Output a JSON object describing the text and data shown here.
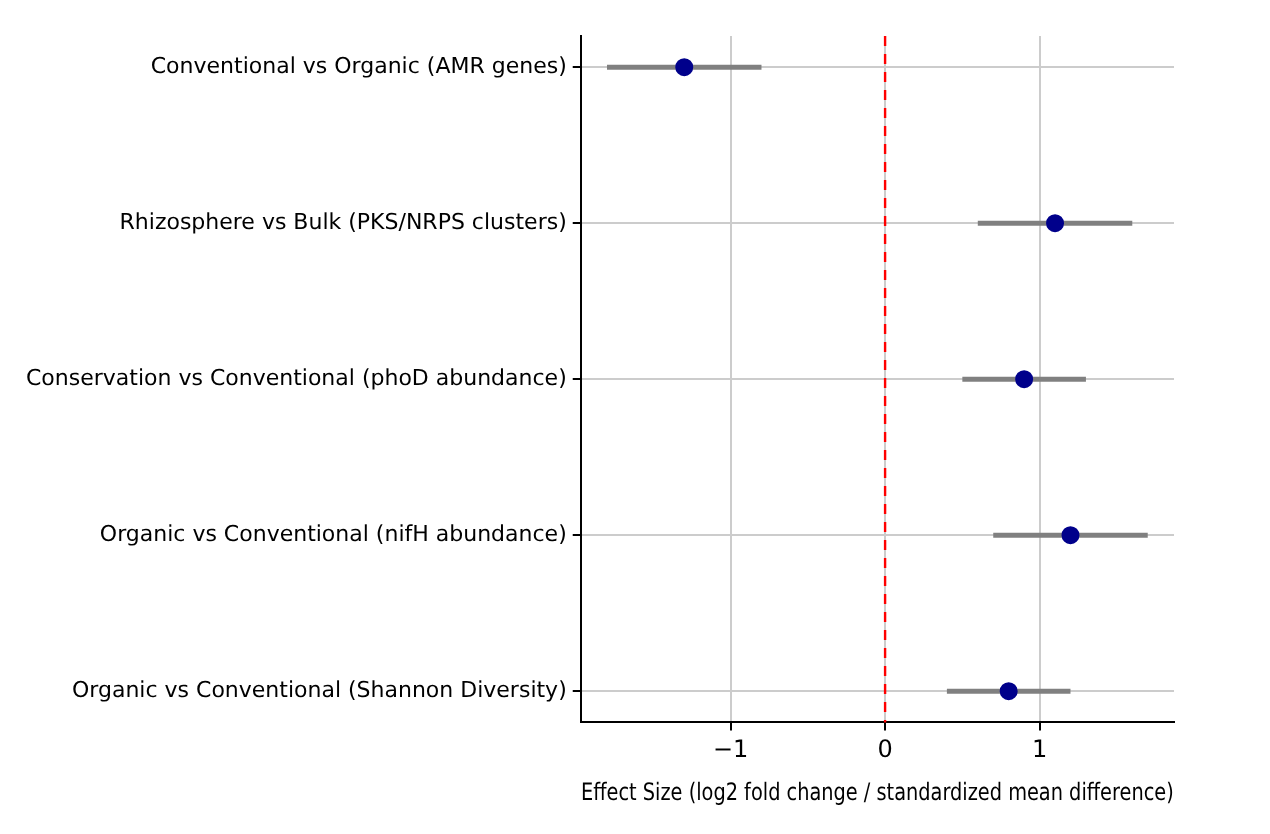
{
  "chart_data": {
    "type": "scatter",
    "orientation": "horizontal",
    "categories": [
      "Conventional vs Organic (AMR genes)",
      "Rhizosphere vs Bulk (PKS/NRPS clusters)",
      "Conservation vs Conventional (phoD abundance)",
      "Organic vs Conventional (nifH abundance)",
      "Organic vs Conventional (Shannon Diversity)"
    ],
    "values": [
      -1.3,
      1.1,
      0.9,
      1.2,
      0.8
    ],
    "errors": [
      [
        -1.8,
        -0.8
      ],
      [
        0.6,
        1.6
      ],
      [
        0.5,
        1.3
      ],
      [
        0.7,
        1.7
      ],
      [
        0.4,
        1.2
      ]
    ],
    "color": "#00008b",
    "xlabel": "Effect Size (log2 fold change / standardized mean difference)",
    "xlim": [
      -1.97,
      1.87
    ],
    "xticks": [
      {
        "value": -1,
        "label": "−1"
      },
      0,
      1
    ],
    "ref_lines": [
      {
        "axis": "x",
        "value": 0,
        "color": "#ff0000",
        "line_style": "dashed"
      }
    ],
    "grid": true,
    "legend": false,
    "marker": "circle"
  }
}
